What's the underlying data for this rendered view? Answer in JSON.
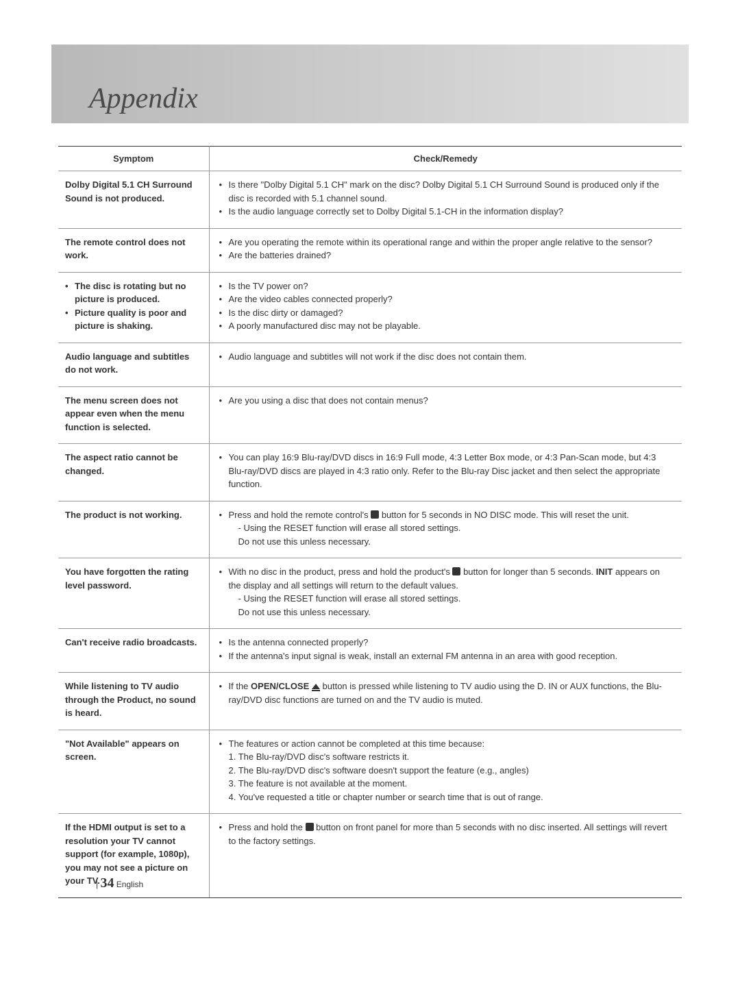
{
  "page": {
    "title": "Appendix",
    "footer_page": "34",
    "footer_lang": "English"
  },
  "table": {
    "headers": {
      "symptom": "Symptom",
      "remedy": "Check/Remedy"
    },
    "rows": [
      {
        "symptom_plain": "Dolby Digital 5.1 CH Surround Sound is not produced.",
        "remedies": [
          "Is there \"Dolby Digital 5.1 CH\" mark on the disc? Dolby Digital 5.1 CH Surround Sound is produced only if the disc is recorded with 5.1 channel sound.",
          "Is the audio language correctly set to Dolby Digital 5.1-CH in the information display?"
        ]
      },
      {
        "symptom_plain": "The remote control does not work.",
        "remedies": [
          "Are you operating the remote within its operational range and within the proper angle relative to the sensor?",
          "Are the batteries drained?"
        ]
      },
      {
        "symptom_list": [
          "The disc is rotating but no picture is produced.",
          "Picture quality is poor and picture is shaking."
        ],
        "remedies": [
          "Is the TV power on?",
          "Are the video cables connected properly?",
          "Is the disc dirty or damaged?",
          "A poorly manufactured disc may not be playable."
        ]
      },
      {
        "symptom_plain": "Audio language and subtitles do not work.",
        "remedies": [
          "Audio language and subtitles will not work if the disc does not contain them."
        ]
      },
      {
        "symptom_plain": "The menu screen does not appear even when the menu function is selected.",
        "remedies": [
          "Are you using a disc that does not contain menus?"
        ]
      },
      {
        "symptom_plain": "The aspect ratio cannot be changed.",
        "remedies": [
          "You can play 16:9 Blu-ray/DVD discs in 16:9 Full mode, 4:3 Letter Box mode, or 4:3 Pan-Scan mode, but 4:3 Blu-ray/DVD discs are played in 4:3 ratio only. Refer to the Blu-ray Disc jacket and then select the appropriate function."
        ]
      },
      {
        "symptom_plain": "The product is not working.",
        "remedy_text_a": "Press and hold the remote control's ",
        "remedy_text_b": " button for 5 seconds in NO DISC mode. This will reset the unit.",
        "sub_dash": "-  Using the RESET function will erase all stored settings.",
        "sub_line": "Do not use this unless necessary."
      },
      {
        "symptom_plain": "You have forgotten the rating level password.",
        "remedy_text_a": "With no disc in the product, press and hold the product's ",
        "remedy_text_b": " button for longer than 5 seconds. ",
        "remedy_bold": "INIT",
        "remedy_text_c": " appears on the display and all settings will return to the default values.",
        "sub_dash": "-  Using the RESET function will erase all stored settings.",
        "sub_line": "Do not use this unless necessary."
      },
      {
        "symptom_plain": "Can't receive radio broadcasts.",
        "remedies": [
          "Is the antenna connected properly?",
          "If the antenna's input signal is weak, install an external FM antenna in an area with good reception."
        ]
      },
      {
        "symptom_plain": "While listening to TV audio through the Product, no sound is heard.",
        "remedy_text_a": "If the ",
        "remedy_bold1": "OPEN/CLOSE",
        "remedy_text_b": " ",
        "remedy_text_c": " button is pressed while listening to TV audio using the D. IN or AUX functions, the Blu-ray/DVD disc functions are turned on and the TV audio is muted."
      },
      {
        "symptom_plain": "\"Not Available\" appears on screen.",
        "remedy_intro": "The features or action cannot be completed at this time because:",
        "numbered": [
          "1. The Blu-ray/DVD disc's software restricts it.",
          "2. The Blu-ray/DVD disc's software doesn't support the feature (e.g., angles)",
          "3. The feature is not available at the moment.",
          "4. You've requested a title or chapter number or search time that is out of range."
        ]
      },
      {
        "symptom_plain": "If the HDMI output is set to a resolution your TV cannot support (for example, 1080p), you may not see a picture on your TV.",
        "remedy_text_a": "Press and hold the ",
        "remedy_text_b": " button on front panel for more than 5 seconds with no disc inserted. All settings will revert to the factory settings."
      }
    ]
  }
}
